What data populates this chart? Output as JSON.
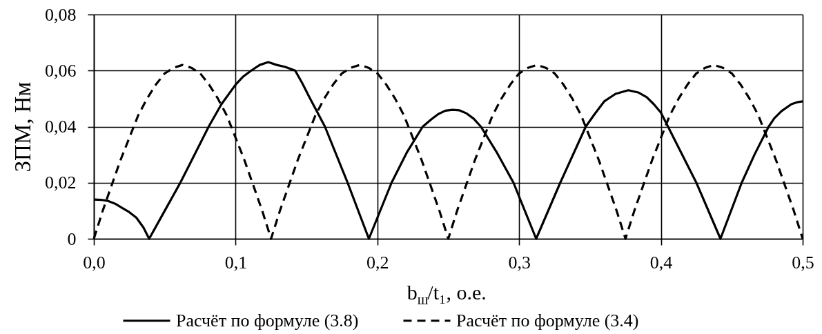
{
  "chart_data": {
    "type": "line",
    "xlabel": "b$_{ш}$/t₁, о.е.",
    "ylabel": "ЗПМ, Нм",
    "xlim": [
      0,
      0.5
    ],
    "xticks": [
      {
        "value": 0,
        "label": "0,0"
      },
      {
        "value": 0.1,
        "label": "0,1"
      },
      {
        "value": 0.2,
        "label": "0,2"
      },
      {
        "value": 0.3,
        "label": "0,3"
      },
      {
        "value": 0.4,
        "label": "0,4"
      },
      {
        "value": 0.5,
        "label": "0,5"
      }
    ],
    "ylim": [
      0,
      0.08
    ],
    "yticks": [
      0,
      {
        "value": 0.02,
        "label": "0,02"
      },
      {
        "value": 0.04,
        "label": "0,04"
      },
      {
        "value": 0.06,
        "label": "0,06"
      },
      {
        "value": 0.08,
        "label": "0,08"
      }
    ],
    "grid": true,
    "legend": "bottom",
    "series": [
      {
        "name": "Расчёт по формуле (3.8)",
        "color": "#000000",
        "line_style": "solid",
        "x": [
          0,
          0.005,
          0.01,
          0.015,
          0.02,
          0.025,
          0.03,
          0.035,
          0.039,
          0.05,
          0.061,
          0.07,
          0.081,
          0.09,
          0.1,
          0.105,
          0.111,
          0.117,
          0.123,
          0.129,
          0.135,
          0.142,
          0.147,
          0.152,
          0.163,
          0.179,
          0.194,
          0.21,
          0.221,
          0.232,
          0.238,
          0.243,
          0.248,
          0.253,
          0.258,
          0.263,
          0.268,
          0.273,
          0.284,
          0.296,
          0.312,
          0.329,
          0.347,
          0.353,
          0.36,
          0.368,
          0.377,
          0.384,
          0.39,
          0.395,
          0.4,
          0.405,
          0.425,
          0.442,
          0.457,
          0.466,
          0.476,
          0.48,
          0.485,
          0.492,
          0.496,
          0.5
        ],
        "values": [
          0.014,
          0.0139,
          0.0135,
          0.0125,
          0.011,
          0.0095,
          0.0075,
          0.004,
          0,
          0.01,
          0.02,
          0.029,
          0.04,
          0.048,
          0.055,
          0.0577,
          0.06,
          0.062,
          0.063,
          0.062,
          0.0613,
          0.06,
          0.0555,
          0.0505,
          0.04,
          0.02,
          0,
          0.02,
          0.031,
          0.04,
          0.0426,
          0.0445,
          0.0457,
          0.046,
          0.0458,
          0.0447,
          0.0428,
          0.04,
          0.031,
          0.02,
          0,
          0.02,
          0.04,
          0.0443,
          0.049,
          0.0517,
          0.053,
          0.0522,
          0.0505,
          0.048,
          0.045,
          0.04,
          0.02,
          0,
          0.02,
          0.03,
          0.04,
          0.043,
          0.0455,
          0.048,
          0.0487,
          0.049
        ]
      },
      {
        "name": "Расчёт по формуле (3.4)",
        "color": "#000000",
        "line_style": "dashed",
        "x": [
          0,
          0.00625,
          0.0125,
          0.01875,
          0.025,
          0.03125,
          0.0375,
          0.04375,
          0.05,
          0.05625,
          0.0625,
          0.06875,
          0.075,
          0.08125,
          0.0875,
          0.09375,
          0.1,
          0.10625,
          0.1125,
          0.11875,
          0.125,
          0.13125,
          0.1375,
          0.14375,
          0.15,
          0.15625,
          0.1625,
          0.16875,
          0.175,
          0.18125,
          0.1875,
          0.19375,
          0.2,
          0.20625,
          0.2125,
          0.21875,
          0.225,
          0.23125,
          0.2375,
          0.24375,
          0.25,
          0.25625,
          0.2625,
          0.26875,
          0.275,
          0.28125,
          0.2875,
          0.29375,
          0.3,
          0.30625,
          0.3125,
          0.31875,
          0.325,
          0.33125,
          0.3375,
          0.34375,
          0.35,
          0.35625,
          0.3625,
          0.36875,
          0.375,
          0.38125,
          0.3875,
          0.39375,
          0.4,
          0.40625,
          0.4125,
          0.41875,
          0.425,
          0.43125,
          0.4375,
          0.44375,
          0.45,
          0.45625,
          0.4625,
          0.46875,
          0.475,
          0.48125,
          0.4875,
          0.49375,
          0.5
        ],
        "values": [
          0,
          0.01,
          0.019,
          0.028,
          0.036,
          0.044,
          0.05,
          0.055,
          0.059,
          0.061,
          0.062,
          0.061,
          0.059,
          0.055,
          0.05,
          0.044,
          0.036,
          0.028,
          0.019,
          0.01,
          0,
          0.01,
          0.019,
          0.028,
          0.036,
          0.044,
          0.05,
          0.055,
          0.059,
          0.061,
          0.062,
          0.061,
          0.059,
          0.055,
          0.05,
          0.044,
          0.036,
          0.028,
          0.019,
          0.01,
          0,
          0.01,
          0.019,
          0.028,
          0.036,
          0.044,
          0.05,
          0.055,
          0.059,
          0.061,
          0.062,
          0.061,
          0.059,
          0.055,
          0.05,
          0.044,
          0.036,
          0.028,
          0.019,
          0.01,
          0,
          0.01,
          0.019,
          0.028,
          0.036,
          0.044,
          0.05,
          0.055,
          0.059,
          0.061,
          0.062,
          0.061,
          0.059,
          0.055,
          0.05,
          0.044,
          0.036,
          0.028,
          0.019,
          0.01,
          0
        ]
      }
    ]
  }
}
